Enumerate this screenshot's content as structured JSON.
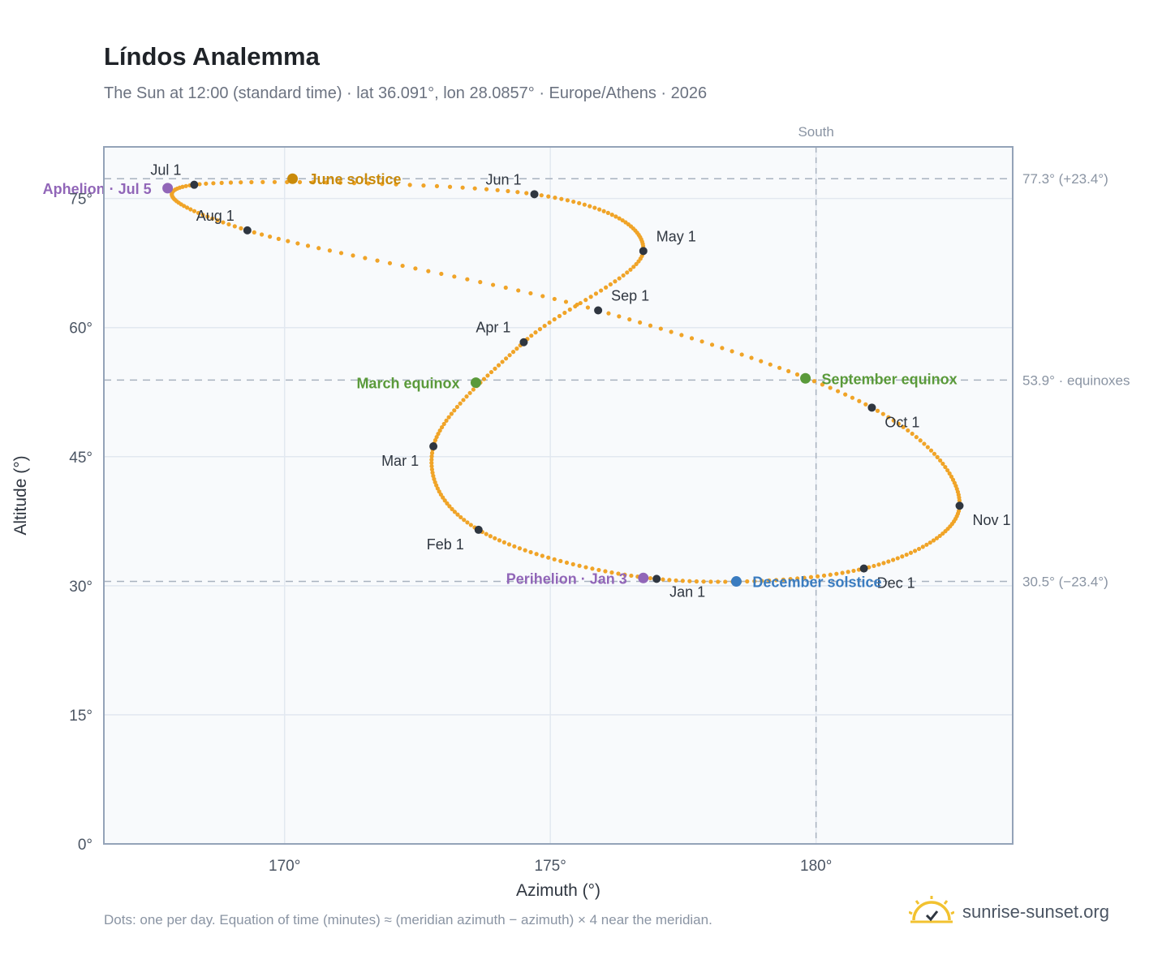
{
  "title": "Líndos Analemma",
  "subtitle": "The Sun at 12:00 (standard time) · lat 36.091°, lon 28.0857° · Europe/Athens · 2026",
  "footnote": "Dots: one per day. Equation of time (minutes) ≈ (meridian azimuth − azimuth) × 4 near the meridian.",
  "brand": {
    "name": "sunrise-sunset.org",
    "icon": "sun-logo-icon"
  },
  "colors": {
    "curve": "#f0a428",
    "month_marker": "#2f3640",
    "june_solstice": "#c98a0a",
    "december_solstice": "#3a7cc0",
    "equinox": "#5a9a3a",
    "apsis": "#9166b8",
    "plot_bg": "#f8fafc",
    "grid": "#e2e8f0",
    "axis": "#94a3b8",
    "reference": "#a8b2bf"
  },
  "chart_data": {
    "type": "scatter",
    "title": "Líndos Analemma",
    "xlabel": "Azimuth (°)",
    "ylabel": "Altitude (°)",
    "xlim": [
      166.6,
      183.7
    ],
    "ylim": [
      0,
      81
    ],
    "grid": true,
    "xticks": [
      170,
      175,
      180
    ],
    "xtick_labels": [
      "170°",
      "175°",
      "180°"
    ],
    "yticks": [
      0,
      15,
      30,
      45,
      60,
      75
    ],
    "ytick_labels": [
      "0°",
      "15°",
      "30°",
      "45°",
      "60°",
      "75°"
    ],
    "south_line": {
      "x": 180,
      "label": "South"
    },
    "reference_lines": [
      {
        "y": 77.3,
        "label": "77.3° (+23.4°)"
      },
      {
        "y": 53.9,
        "label": "53.9° · equinoxes"
      },
      {
        "y": 30.5,
        "label": "30.5° (−23.4°)"
      }
    ],
    "month_points": [
      {
        "label": "Jan 1",
        "az": 177.0,
        "alt": 30.8
      },
      {
        "label": "Feb 1",
        "az": 173.65,
        "alt": 36.5
      },
      {
        "label": "Mar 1",
        "az": 172.8,
        "alt": 46.2
      },
      {
        "label": "Apr 1",
        "az": 174.5,
        "alt": 58.3
      },
      {
        "label": "May 1",
        "az": 176.75,
        "alt": 68.9
      },
      {
        "label": "Jun 1",
        "az": 174.7,
        "alt": 75.5
      },
      {
        "label": "Jul 1",
        "az": 168.3,
        "alt": 76.6
      },
      {
        "label": "Aug 1",
        "az": 169.3,
        "alt": 71.3
      },
      {
        "label": "Sep 1",
        "az": 175.9,
        "alt": 62.0
      },
      {
        "label": "Oct 1",
        "az": 181.05,
        "alt": 50.7
      },
      {
        "label": "Nov 1",
        "az": 182.7,
        "alt": 39.3
      },
      {
        "label": "Dec 1",
        "az": 180.9,
        "alt": 32.0
      }
    ],
    "events": [
      {
        "label": "June solstice",
        "az": 170.15,
        "alt": 77.3,
        "color": "#c98a0a"
      },
      {
        "label": "December solstice",
        "az": 178.5,
        "alt": 30.5,
        "color": "#3a7cc0"
      },
      {
        "label": "March equinox",
        "az": 173.6,
        "alt": 53.6,
        "color": "#5a9a3a"
      },
      {
        "label": "September equinox",
        "az": 179.8,
        "alt": 54.1,
        "color": "#5a9a3a"
      },
      {
        "label": "Aphelion · Jul 5",
        "az": 167.8,
        "alt": 76.2,
        "color": "#9166b8"
      },
      {
        "label": "Perihelion · Jan 3",
        "az": 176.75,
        "alt": 30.9,
        "color": "#9166b8"
      }
    ]
  }
}
